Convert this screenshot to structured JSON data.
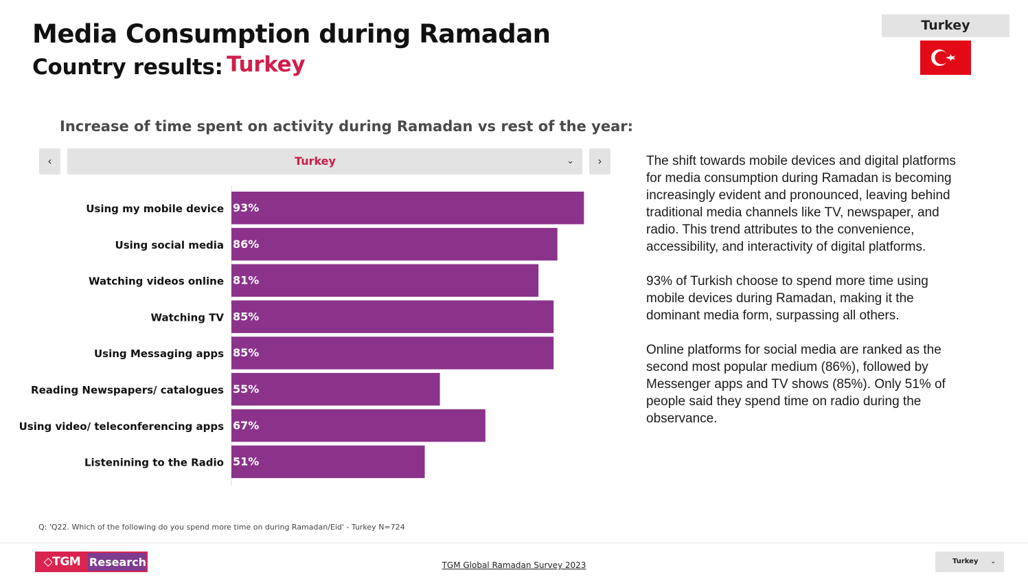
{
  "header": {
    "title": "Media Consumption during Ramadan",
    "subtitle_label": "Country results:",
    "subtitle_country": "Turkey",
    "country_box": "Turkey",
    "flag_icon": "turkey-flag-icon"
  },
  "colors": {
    "accent": "#d01e4c",
    "bar": "#8b338b",
    "control_bg": "#e3e3e3"
  },
  "filter": {
    "selected": "Turkey",
    "prev_icon": "‹",
    "next_icon": "›",
    "chevron_icon": "⌄"
  },
  "chart_data": {
    "type": "bar",
    "orientation": "horizontal",
    "title": "Increase of time spent on activity during Ramadan vs rest of the year:",
    "categories": [
      "Using my mobile device",
      "Using social media",
      "Watching videos online",
      "Watching TV",
      "Using Messaging apps",
      "Reading Newspapers/ catalogues",
      "Using video/ teleconferencing apps",
      "Listenining to the Radio"
    ],
    "values": [
      93,
      86,
      81,
      85,
      85,
      55,
      67,
      51
    ],
    "value_labels": [
      "93%",
      "86%",
      "81%",
      "85%",
      "85%",
      "55%",
      "67%",
      "51%"
    ],
    "xlim": [
      0,
      100
    ],
    "grid": false,
    "legend": "none"
  },
  "commentary": {
    "paragraphs": [
      "The shift towards mobile devices and digital platforms for media consumption during Ramadan is becoming increasingly evident and pronounced, leaving behind traditional media channels like TV, newspaper, and radio. This trend attributes to the convenience, accessibility, and interactivity of digital platforms.",
      "93% of Turkish choose to spend more time using mobile devices during Ramadan, making it the dominant media form, surpassing all others.",
      "Online platforms for social media are ranked as the second most popular medium (86%), followed by Messenger apps and TV shows (85%). Only 51% of people said they spend time on radio during the observance."
    ]
  },
  "footnote": "Q: 'Q22. Which of the following do you spend more time on during Ramadan/Eid' - Turkey N=724",
  "footer": {
    "logo_mark": "◇TGM",
    "logo_text": "Research",
    "link": "TGM Global Ramadan Survey 2023",
    "select_value": "Turkey",
    "select_chevron": "⌄"
  }
}
